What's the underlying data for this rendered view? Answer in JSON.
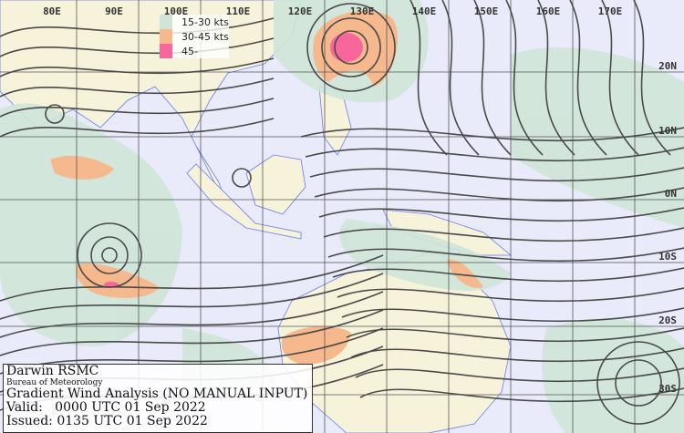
{
  "map": {
    "longitude_labels": [
      "80E",
      "90E",
      "100E",
      "110E",
      "120E",
      "130E",
      "140E",
      "150E",
      "160E",
      "170E"
    ],
    "latitude_labels": [
      "20N",
      "10N",
      "0N",
      "10S",
      "20S",
      "30S"
    ],
    "colors": {
      "sea": "#e9ebfa",
      "land": "#f6f3da",
      "wind_15_30": "#cfe5d8",
      "wind_30_45": "#f6b98e",
      "wind_45_plus": "#f7679c",
      "coast": "#6a7af0",
      "streamline": "#4a4a4a",
      "grid": "#555555"
    }
  },
  "legend": {
    "items": [
      {
        "label": "15-30 kts",
        "color": "#cfe5d8"
      },
      {
        "label": "30-45 kts",
        "color": "#f6b98e"
      },
      {
        "label": "45-",
        "color": "#f7679c"
      }
    ]
  },
  "info": {
    "office": "Darwin RSMC",
    "agency": "Bureau of Meteorology",
    "title": "Gradient Wind Analysis (NO MANUAL INPUT)",
    "valid": "Valid:   0000 UTC 01 Sep 2022",
    "issued": "Issued: 0135 UTC 01 Sep 2022"
  }
}
